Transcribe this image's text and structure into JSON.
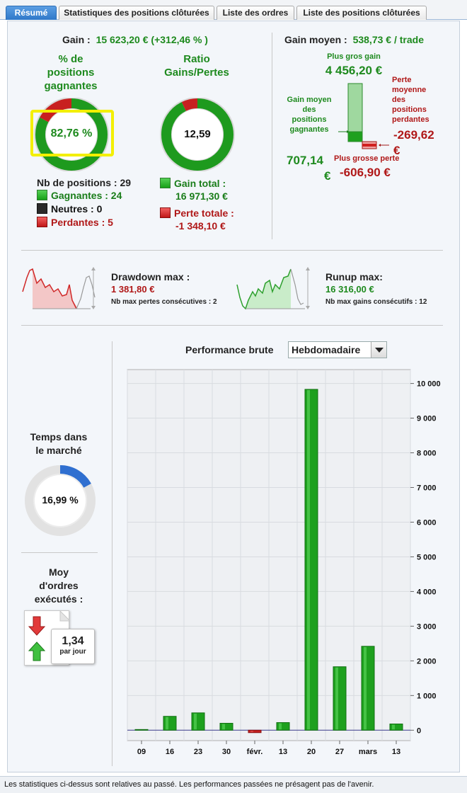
{
  "tabs": [
    {
      "label": "Résumé",
      "active": true
    },
    {
      "label": "Statistiques des positions clôturées",
      "active": false
    },
    {
      "label": "Liste des ordres",
      "active": false
    },
    {
      "label": "Liste des positions clôturées",
      "active": false
    }
  ],
  "gain": {
    "label": "Gain :",
    "value": "15 623,20 € (+312,46 % )"
  },
  "win_rate": {
    "title_line1": "% de",
    "title_line2": "positions",
    "title_line3": "gagnantes",
    "value": "82,76 %",
    "fraction": 0.8276
  },
  "ratio": {
    "title_line1": "Ratio",
    "title_line2": "Gains/Pertes",
    "value": "12,59",
    "fraction": 0.9266
  },
  "positions": {
    "count_label": "Nb de positions : 29",
    "winners": "Gagnantes : 24",
    "neutral": "Neutres : 0",
    "losers": "Perdantes : 5"
  },
  "totals": {
    "gain_label": "Gain total :",
    "gain_value": "16 971,30 €",
    "loss_label": "Perte totale :",
    "loss_value": "-1 348,10 €"
  },
  "avg_gain": {
    "label": "Gain moyen :",
    "value": "538,73 € / trade",
    "biggest_gain_label": "Plus gros gain",
    "biggest_gain_value": "4 456,20 €",
    "avg_win_label_1": "Gain moyen",
    "avg_win_label_2": "des",
    "avg_win_label_3": "positions",
    "avg_win_label_4": "gagnantes",
    "avg_win_value_1": "707,14",
    "avg_win_value_2": "€",
    "avg_loss_label_1": "Perte",
    "avg_loss_label_2": "moyenne",
    "avg_loss_label_3": "des",
    "avg_loss_label_4": "positions",
    "avg_loss_label_5": "perdantes",
    "avg_loss_value_1": "-269,62",
    "avg_loss_value_2": "€",
    "biggest_loss_label": "Plus grosse perte",
    "biggest_loss_value": "-606,90 €"
  },
  "drawdown": {
    "label": "Drawdown max :",
    "value": "1 381,80 €",
    "sub": "Nb max pertes consécutives : 2"
  },
  "runup": {
    "label": "Runup max:",
    "value": "16 316,00 €",
    "sub": "Nb max gains consécutifs : 12"
  },
  "market_time": {
    "title_line1": "Temps dans",
    "title_line2": "le marché",
    "value": "16,99 %",
    "fraction": 0.1699
  },
  "orders": {
    "title_line1": "Moy",
    "title_line2": "d'ordres",
    "title_line3": "exécutés :",
    "value": "1,34",
    "unit": "par jour"
  },
  "performance": {
    "title": "Performance brute",
    "period": "Hebdomadaire"
  },
  "chart_data": {
    "type": "bar",
    "categories": [
      "09",
      "16",
      "23",
      "30",
      "févr.",
      "13",
      "20",
      "27",
      "mars",
      "13"
    ],
    "values": [
      20,
      400,
      500,
      200,
      -70,
      220,
      9830,
      1830,
      2420,
      180
    ],
    "ylim": [
      -300,
      10400
    ],
    "yticks": [
      0,
      1000,
      2000,
      3000,
      4000,
      5000,
      6000,
      7000,
      8000,
      9000,
      10000
    ],
    "ytick_labels": [
      "0",
      "1 000",
      "2 000",
      "3 000",
      "4 000",
      "5 000",
      "6 000",
      "7 000",
      "8 000",
      "9 000",
      "10 000"
    ],
    "positive_color": "#1ea01e",
    "negative_color": "#c42020",
    "grid": true
  },
  "footer": "Les statistiques ci-dessus sont relatives au passé. Les performances passées ne présagent pas de l'avenir.",
  "colors": {
    "green": "#1e8a1e",
    "red": "#b01818",
    "highlight": "#f5f500",
    "tab_active": "#3a84d4"
  }
}
